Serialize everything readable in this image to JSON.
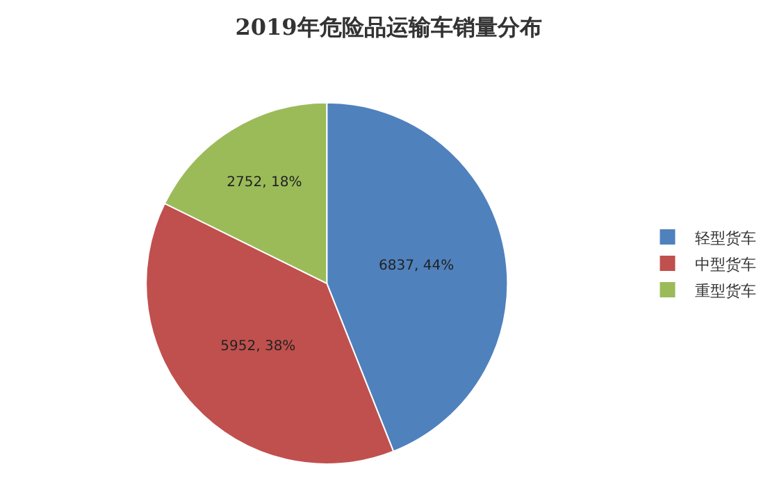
{
  "chart_data": {
    "type": "pie",
    "title": "2019年危险品运输车销量分布",
    "categories": [
      "轻型货车",
      "中型货车",
      "重型货车"
    ],
    "values": [
      6837,
      5952,
      2752
    ],
    "colors": [
      "#4f81bd",
      "#c0504d",
      "#9bbb59"
    ],
    "value_labels": [
      "6837, 44%",
      "5952, 38%",
      "2752, 18%"
    ],
    "legend": "right"
  }
}
